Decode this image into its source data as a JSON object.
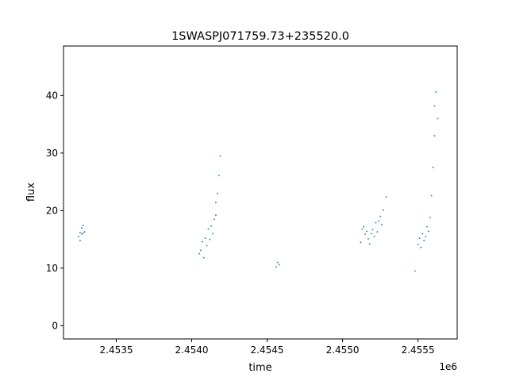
{
  "chart_data": {
    "type": "scatter",
    "title": "1SWASPJ071759.73+235520.0",
    "xlabel": "time",
    "ylabel": "flux",
    "x_offset_label": "1e6",
    "xlim": [
      2.45315,
      2.45576
    ],
    "ylim": [
      -2.3,
      48.6
    ],
    "x_ticks": [
      {
        "value": 2.4535,
        "label": "2.4535"
      },
      {
        "value": 2.454,
        "label": "2.4540"
      },
      {
        "value": 2.4545,
        "label": "2.4545"
      },
      {
        "value": 2.455,
        "label": "2.4550"
      },
      {
        "value": 2.4555,
        "label": "2.4555"
      }
    ],
    "y_ticks": [
      {
        "value": 0,
        "label": "0"
      },
      {
        "value": 10,
        "label": "10"
      },
      {
        "value": 20,
        "label": "20"
      },
      {
        "value": 30,
        "label": "30"
      },
      {
        "value": 40,
        "label": "40"
      }
    ],
    "grid": false,
    "point_color": "#1f77b4",
    "series": [
      {
        "x": [
          2.45325,
          2.45326,
          2.45326,
          2.45327,
          2.45327,
          2.45328,
          2.45328,
          2.45329,
          2.45405,
          2.45406,
          2.45407,
          2.45408,
          2.45409,
          2.4541,
          2.45411,
          2.45412,
          2.45413,
          2.45414,
          2.45415,
          2.45416,
          2.45416,
          2.45417,
          2.45418,
          2.45419,
          2.45456,
          2.45457,
          2.45458,
          2.45512,
          2.45513,
          2.45514,
          2.45515,
          2.45516,
          2.45517,
          2.45518,
          2.45519,
          2.4552,
          2.45521,
          2.45522,
          2.45523,
          2.45524,
          2.45525,
          2.45526,
          2.45527,
          2.45529,
          2.45548,
          2.4555,
          2.45551,
          2.45552,
          2.45553,
          2.45554,
          2.45555,
          2.45556,
          2.45557,
          2.45558,
          2.45559,
          2.4556,
          2.45561,
          2.45561,
          2.45562,
          2.45563
        ],
        "y": [
          15.5,
          16.2,
          14.8,
          15.9,
          17.0,
          16.1,
          17.4,
          16.3,
          12.5,
          13.1,
          14.6,
          11.8,
          15.2,
          13.9,
          16.8,
          15.0,
          17.3,
          16.0,
          18.5,
          19.2,
          21.4,
          23.0,
          26.1,
          29.5,
          10.2,
          11.0,
          10.6,
          14.5,
          16.8,
          17.2,
          15.9,
          16.4,
          15.1,
          14.2,
          16.0,
          16.7,
          15.5,
          17.9,
          16.3,
          18.2,
          19.0,
          17.6,
          20.1,
          22.4,
          9.5,
          14.1,
          15.2,
          13.6,
          16.0,
          14.8,
          15.5,
          17.2,
          16.4,
          18.8,
          22.6,
          27.5,
          33.0,
          38.2,
          40.6,
          36.0
        ]
      }
    ]
  }
}
